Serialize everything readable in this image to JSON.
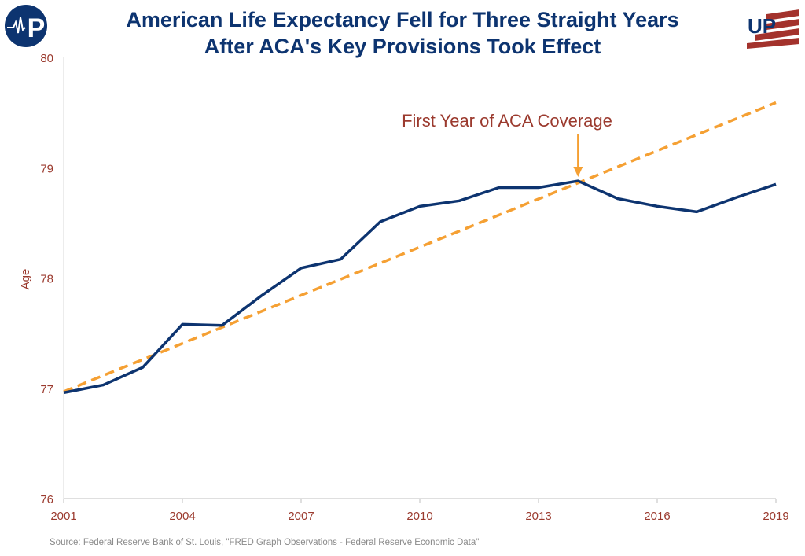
{
  "title_line1": "American Life Expectancy Fell for Three Straight Years",
  "title_line2": "After ACA's Key Provisions Took Effect",
  "source": "Source:  Federal Reserve Bank of St. Louis, \"FRED Graph Observations - Federal Reserve Economic Data\"",
  "logos": {
    "left": "P",
    "right": "UP"
  },
  "colors": {
    "series": "#0d3470",
    "trend": "#f5a033",
    "labels": "#9b3a2e"
  },
  "chart_data": {
    "type": "line",
    "title": "American Life Expectancy Fell for Three Straight Years After ACA's Key Provisions Took Effect",
    "xlabel": "",
    "ylabel": "Age",
    "xlim": [
      2001,
      2019
    ],
    "ylim": [
      76,
      80
    ],
    "xticks": [
      "2001",
      "2004",
      "2007",
      "2010",
      "2013",
      "2016",
      "2019"
    ],
    "yticks": [
      "76",
      "77",
      "78",
      "79",
      "80"
    ],
    "grid": false,
    "x": [
      2001,
      2002,
      2003,
      2004,
      2005,
      2006,
      2007,
      2008,
      2009,
      2010,
      2011,
      2012,
      2013,
      2014,
      2015,
      2016,
      2017,
      2018,
      2019
    ],
    "series": [
      {
        "values": [
          76.96,
          77.03,
          77.19,
          77.58,
          77.57,
          77.84,
          78.09,
          78.17,
          78.51,
          78.65,
          78.7,
          78.82,
          78.82,
          78.88,
          78.72,
          78.65,
          78.6,
          78.73,
          78.85
        ],
        "style": "solid"
      },
      {
        "trend": true,
        "x": [
          2001,
          2019
        ],
        "values": [
          76.97,
          79.59
        ],
        "style": "dashed"
      }
    ],
    "annotation": {
      "text": "First Year of ACA Coverage",
      "x": 2014,
      "arrow": true
    }
  }
}
